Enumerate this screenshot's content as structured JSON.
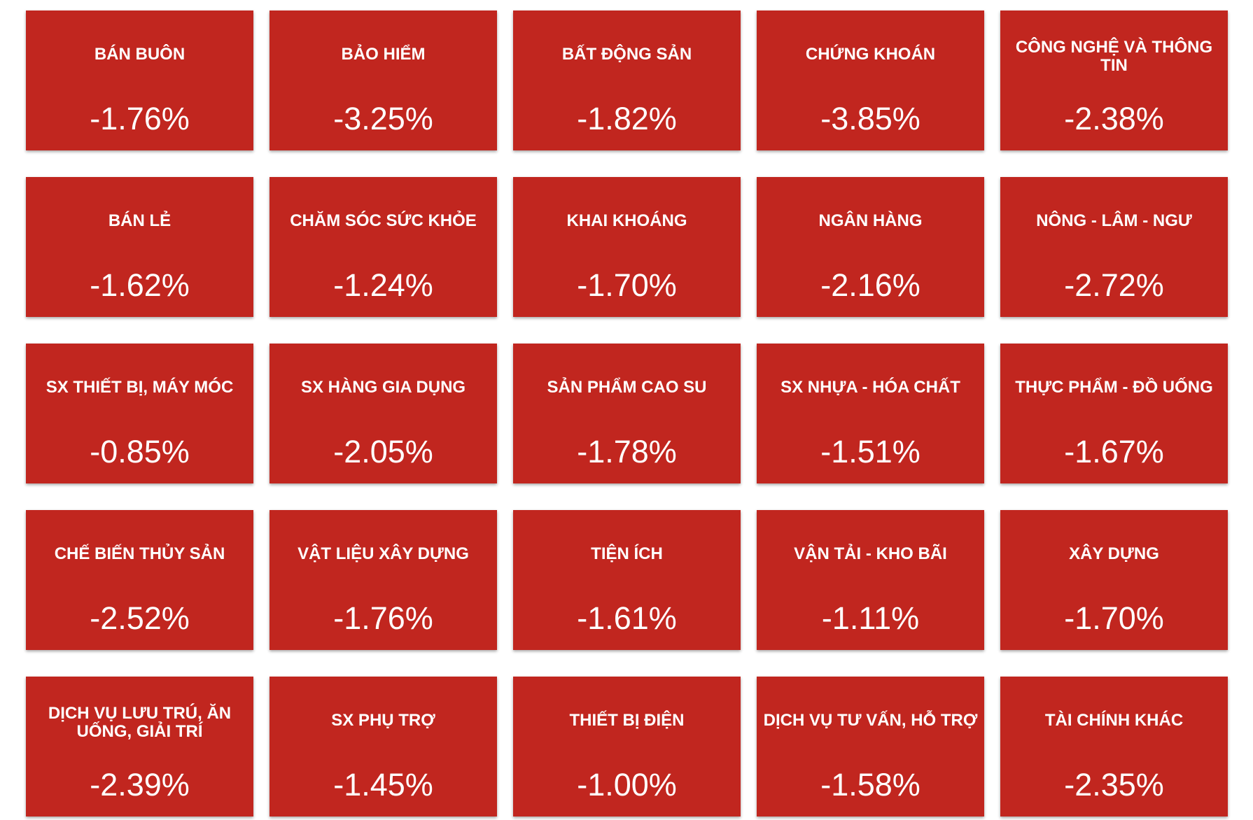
{
  "tiles": [
    {
      "name": "BÁN BUÔN",
      "value": "-1.76%"
    },
    {
      "name": "BẢO HIỂM",
      "value": "-3.25%"
    },
    {
      "name": "BẤT ĐỘNG SẢN",
      "value": "-1.82%"
    },
    {
      "name": "CHỨNG KHOÁN",
      "value": "-3.85%"
    },
    {
      "name": "CÔNG NGHỆ VÀ THÔNG TIN",
      "value": "-2.38%"
    },
    {
      "name": "BÁN LẺ",
      "value": "-1.62%"
    },
    {
      "name": "CHĂM SÓC SỨC KHỎE",
      "value": "-1.24%"
    },
    {
      "name": "KHAI KHOÁNG",
      "value": "-1.70%"
    },
    {
      "name": "NGÂN HÀNG",
      "value": "-2.16%"
    },
    {
      "name": "NÔNG - LÂM - NGƯ",
      "value": "-2.72%"
    },
    {
      "name": "SX THIẾT BỊ, MÁY MÓC",
      "value": "-0.85%"
    },
    {
      "name": "SX HÀNG GIA DỤNG",
      "value": "-2.05%"
    },
    {
      "name": "SẢN PHẨM CAO SU",
      "value": "-1.78%"
    },
    {
      "name": "SX NHỰA - HÓA CHẤT",
      "value": "-1.51%"
    },
    {
      "name": "THỰC PHẨM - ĐỒ UỐNG",
      "value": "-1.67%"
    },
    {
      "name": "CHẾ BIẾN THỦY SẢN",
      "value": "-2.52%"
    },
    {
      "name": "VẬT LIỆU XÂY DỰNG",
      "value": "-1.76%"
    },
    {
      "name": "TIỆN ÍCH",
      "value": "-1.61%"
    },
    {
      "name": "VẬN TẢI - KHO BÃI",
      "value": "-1.11%"
    },
    {
      "name": "XÂY DỰNG",
      "value": "-1.70%"
    },
    {
      "name": "DỊCH VỤ LƯU TRÚ, ĂN UỐNG, GIẢI TRÍ",
      "value": "-2.39%"
    },
    {
      "name": "SX PHỤ TRỢ",
      "value": "-1.45%"
    },
    {
      "name": "THIẾT BỊ ĐIỆN",
      "value": "-1.00%"
    },
    {
      "name": "DỊCH VỤ TƯ VẤN, HỖ TRỢ",
      "value": "-1.58%"
    },
    {
      "name": "TÀI CHÍNH KHÁC",
      "value": "-2.35%"
    }
  ]
}
